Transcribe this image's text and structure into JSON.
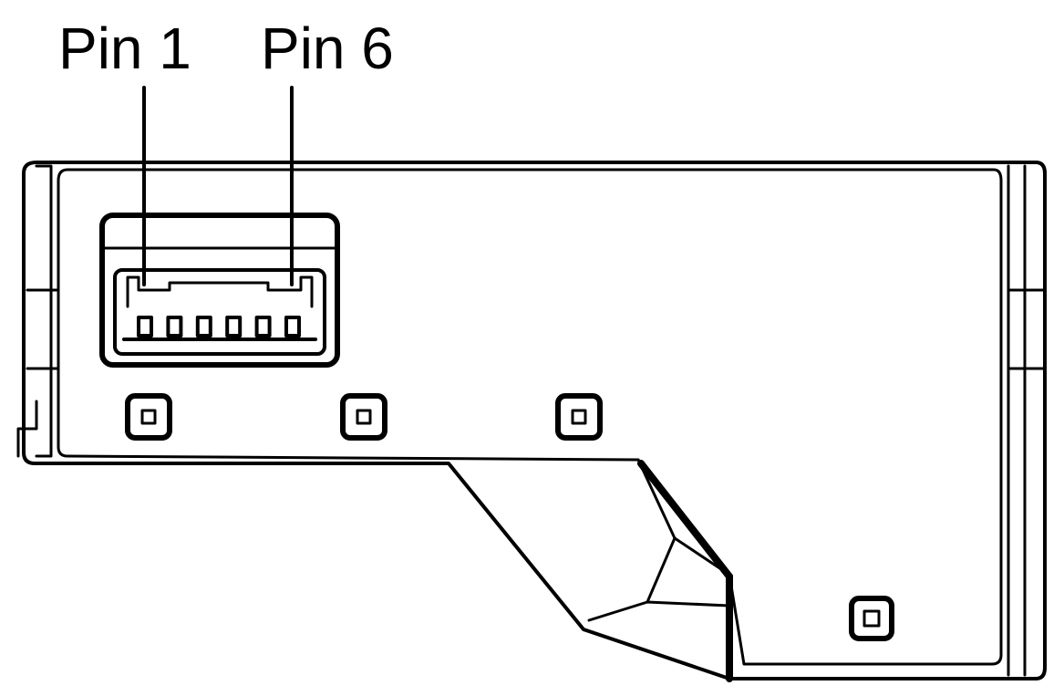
{
  "diagram": {
    "labels": {
      "pin_first": "Pin 1",
      "pin_last": "Pin 6"
    },
    "connector_pin_count": 6,
    "line_color": "#000000",
    "background_color": "#ffffff"
  }
}
